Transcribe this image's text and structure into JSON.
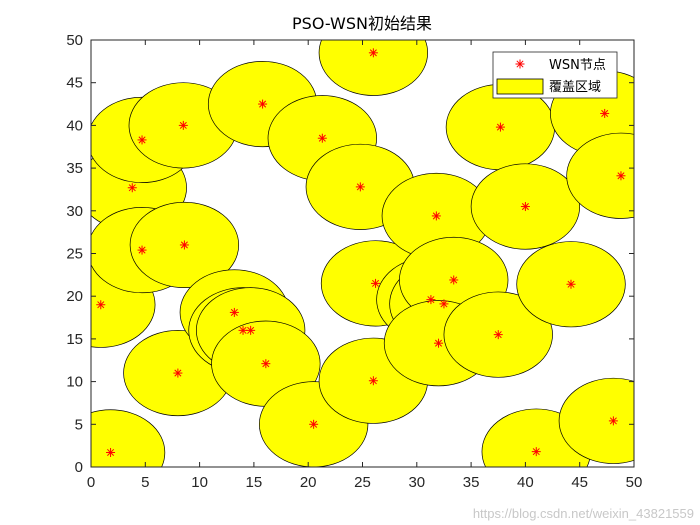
{
  "chart_data": {
    "type": "scatter",
    "title": "PSO-WSN初始结果",
    "xlabel": "",
    "ylabel": "",
    "xlim": [
      0,
      50
    ],
    "ylim": [
      0,
      50
    ],
    "xticks": [
      0,
      5,
      10,
      15,
      20,
      25,
      30,
      35,
      40,
      45,
      50
    ],
    "yticks": [
      0,
      5,
      10,
      15,
      20,
      25,
      30,
      35,
      40,
      45,
      50
    ],
    "grid": false,
    "legend_position": "top-right",
    "coverage_radius": 5,
    "series": [
      {
        "name": "WSN节点",
        "marker": "asterisk",
        "color": "#ff0000",
        "points": [
          [
            1.8,
            1.7
          ],
          [
            0.9,
            19.0
          ],
          [
            3.8,
            32.7
          ],
          [
            4.7,
            38.3
          ],
          [
            4.7,
            25.4
          ],
          [
            8.5,
            40.0
          ],
          [
            8.6,
            26.0
          ],
          [
            8.0,
            11.0
          ],
          [
            13.2,
            18.1
          ],
          [
            14.0,
            16.0
          ],
          [
            14.7,
            16.0
          ],
          [
            15.8,
            42.5
          ],
          [
            16.1,
            12.1
          ],
          [
            21.3,
            38.5
          ],
          [
            20.5,
            5.0
          ],
          [
            24.8,
            32.8
          ],
          [
            26.0,
            48.5
          ],
          [
            26.2,
            21.5
          ],
          [
            26.0,
            10.1
          ],
          [
            31.8,
            29.4
          ],
          [
            31.3,
            19.6
          ],
          [
            32.5,
            19.1
          ],
          [
            33.4,
            21.9
          ],
          [
            32.0,
            14.5
          ],
          [
            37.5,
            15.5
          ],
          [
            37.7,
            39.8
          ],
          [
            40.0,
            30.5
          ],
          [
            41.0,
            1.8
          ],
          [
            44.2,
            21.4
          ],
          [
            47.3,
            41.4
          ],
          [
            48.1,
            5.4
          ],
          [
            48.8,
            34.1
          ]
        ]
      },
      {
        "name": "覆盖区域",
        "color": "#ffff00",
        "edge_color": "#000000"
      }
    ]
  },
  "watermark": "https://blog.csdn.net/weixin_43821559"
}
